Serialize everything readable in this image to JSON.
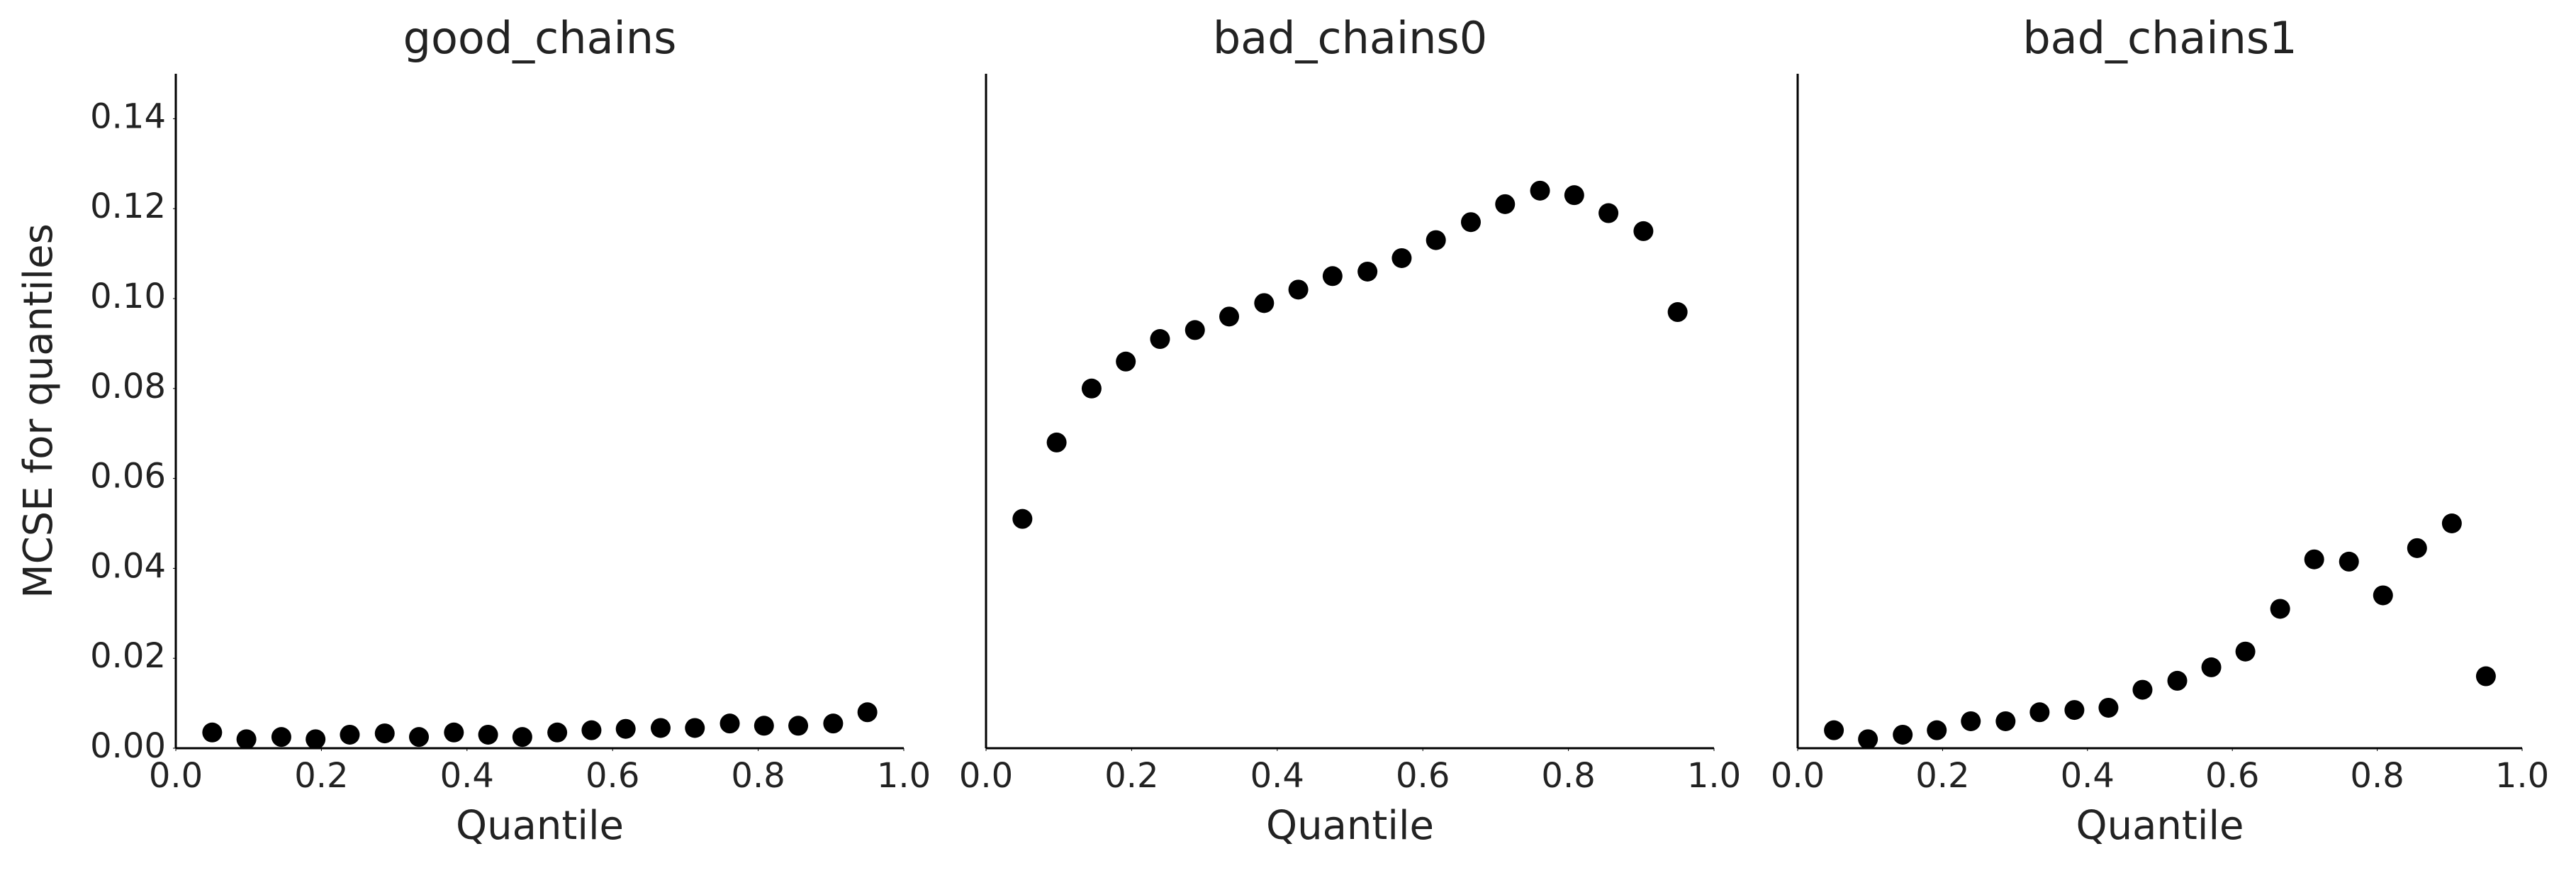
{
  "chart_data": [
    {
      "type": "scatter",
      "title": "good_chains",
      "x_label": "Quantile",
      "y_label": "MCSE for quantiles",
      "color": "#000000",
      "x": [
        0.05,
        0.097,
        0.145,
        0.192,
        0.239,
        0.287,
        0.334,
        0.382,
        0.429,
        0.476,
        0.524,
        0.571,
        0.618,
        0.666,
        0.713,
        0.761,
        0.808,
        0.855,
        0.903,
        0.95
      ],
      "values": [
        0.0035,
        0.002,
        0.0025,
        0.002,
        0.003,
        0.0033,
        0.0025,
        0.0035,
        0.003,
        0.0025,
        0.0035,
        0.004,
        0.0043,
        0.0045,
        0.0045,
        0.0055,
        0.005,
        0.005,
        0.0055,
        0.008
      ],
      "xlim": [
        0,
        1
      ],
      "xticks": [
        {
          "value": 0,
          "label": "0.0"
        },
        {
          "value": 0.2,
          "label": "0.2"
        },
        {
          "value": 0.4,
          "label": "0.4"
        },
        {
          "value": 0.6,
          "label": "0.6"
        },
        {
          "value": 0.8,
          "label": "0.8"
        },
        {
          "value": 1,
          "label": "1.0"
        }
      ],
      "ylim": [
        0,
        0.15
      ],
      "yticks": [
        {
          "value": 0,
          "label": "0.00"
        },
        {
          "value": 0.02,
          "label": "0.02"
        },
        {
          "value": 0.04,
          "label": "0.04"
        },
        {
          "value": 0.06,
          "label": "0.06"
        },
        {
          "value": 0.08,
          "label": "0.08"
        },
        {
          "value": 0.1,
          "label": "0.10"
        },
        {
          "value": 0.12,
          "label": "0.12"
        },
        {
          "value": 0.14,
          "label": "0.14"
        }
      ]
    },
    {
      "type": "scatter",
      "title": "bad_chains0",
      "x_label": "Quantile",
      "color": "#000000",
      "x": [
        0.05,
        0.097,
        0.145,
        0.192,
        0.239,
        0.287,
        0.334,
        0.382,
        0.429,
        0.476,
        0.524,
        0.571,
        0.618,
        0.666,
        0.713,
        0.761,
        0.808,
        0.855,
        0.903,
        0.95
      ],
      "values": [
        0.051,
        0.068,
        0.08,
        0.086,
        0.091,
        0.093,
        0.096,
        0.099,
        0.102,
        0.105,
        0.106,
        0.109,
        0.113,
        0.117,
        0.121,
        0.124,
        0.123,
        0.119,
        0.115,
        0.097
      ],
      "xlim": [
        0,
        1
      ],
      "xticks": [
        {
          "value": 0,
          "label": "0.0"
        },
        {
          "value": 0.2,
          "label": "0.2"
        },
        {
          "value": 0.4,
          "label": "0.4"
        },
        {
          "value": 0.6,
          "label": "0.6"
        },
        {
          "value": 0.8,
          "label": "0.8"
        },
        {
          "value": 1,
          "label": "1.0"
        }
      ],
      "ylim": [
        0,
        0.15
      ]
    },
    {
      "type": "scatter",
      "title": "bad_chains1",
      "x_label": "Quantile",
      "color": "#000000",
      "x": [
        0.05,
        0.097,
        0.145,
        0.192,
        0.239,
        0.287,
        0.334,
        0.382,
        0.429,
        0.476,
        0.524,
        0.571,
        0.618,
        0.666,
        0.713,
        0.761,
        0.808,
        0.855,
        0.903,
        0.95
      ],
      "values": [
        0.004,
        0.002,
        0.003,
        0.004,
        0.006,
        0.006,
        0.008,
        0.0085,
        0.009,
        0.013,
        0.015,
        0.018,
        0.0215,
        0.031,
        0.042,
        0.0415,
        0.034,
        0.0445,
        0.05,
        0.016
      ],
      "xlim": [
        0,
        1
      ],
      "xticks": [
        {
          "value": 0,
          "label": "0.0"
        },
        {
          "value": 0.2,
          "label": "0.2"
        },
        {
          "value": 0.4,
          "label": "0.4"
        },
        {
          "value": 0.6,
          "label": "0.6"
        },
        {
          "value": 0.8,
          "label": "0.8"
        },
        {
          "value": 1,
          "label": "1.0"
        }
      ],
      "ylim": [
        0,
        0.15
      ]
    }
  ]
}
